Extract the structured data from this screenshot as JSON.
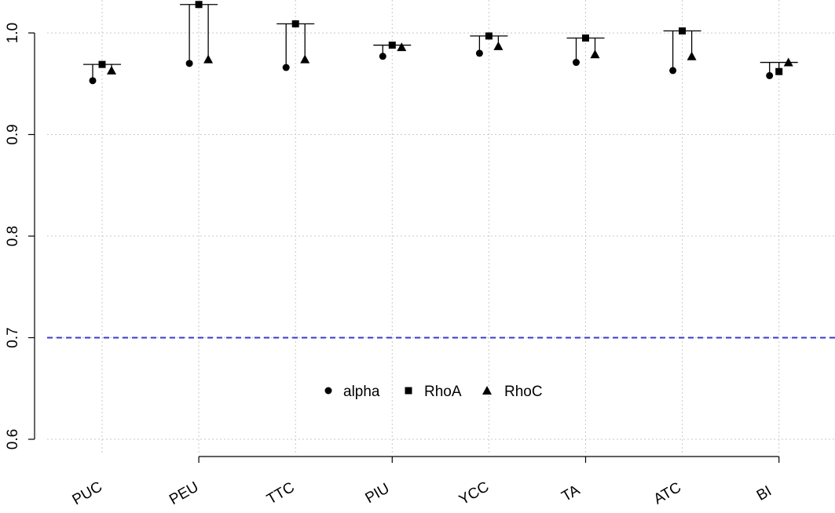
{
  "chart_data": {
    "type": "scatter",
    "categories": [
      "PUC",
      "PEU",
      "TTC",
      "PIU",
      "YCC",
      "TA",
      "ATC",
      "BI"
    ],
    "labeled_x_ticks": [
      "PEU",
      "PIU",
      "TA",
      "BI"
    ],
    "series": [
      {
        "name": "alpha",
        "marker": "circle",
        "values": [
          0.953,
          0.97,
          0.966,
          0.977,
          0.98,
          0.971,
          0.963,
          0.958
        ]
      },
      {
        "name": "RhoA",
        "marker": "square",
        "values": [
          0.969,
          1.028,
          1.009,
          0.988,
          0.997,
          0.995,
          1.002,
          0.962
        ]
      },
      {
        "name": "RhoC",
        "marker": "triangle",
        "values": [
          0.963,
          0.974,
          0.974,
          0.986,
          0.987,
          0.979,
          0.977,
          0.971
        ]
      }
    ],
    "y_ticks": [
      0.6,
      0.7,
      0.8,
      0.9,
      1.0
    ],
    "y_tick_labels": [
      "0.6",
      "0.7",
      "0.8",
      "0.9",
      "1.0"
    ],
    "ylim": [
      0.6,
      1.03
    ],
    "xlabel": "",
    "ylabel": "",
    "title": "",
    "reference_line": {
      "value": 0.7,
      "style": "dashed",
      "color": "#3a3acb"
    },
    "grid": true,
    "legend": {
      "placement": "bottom-center",
      "entries": [
        "alpha",
        "RhoA",
        "RhoC"
      ]
    },
    "colors": {
      "markers": "#000000",
      "grid": "#c8c8c8",
      "axis": "#000000"
    }
  }
}
